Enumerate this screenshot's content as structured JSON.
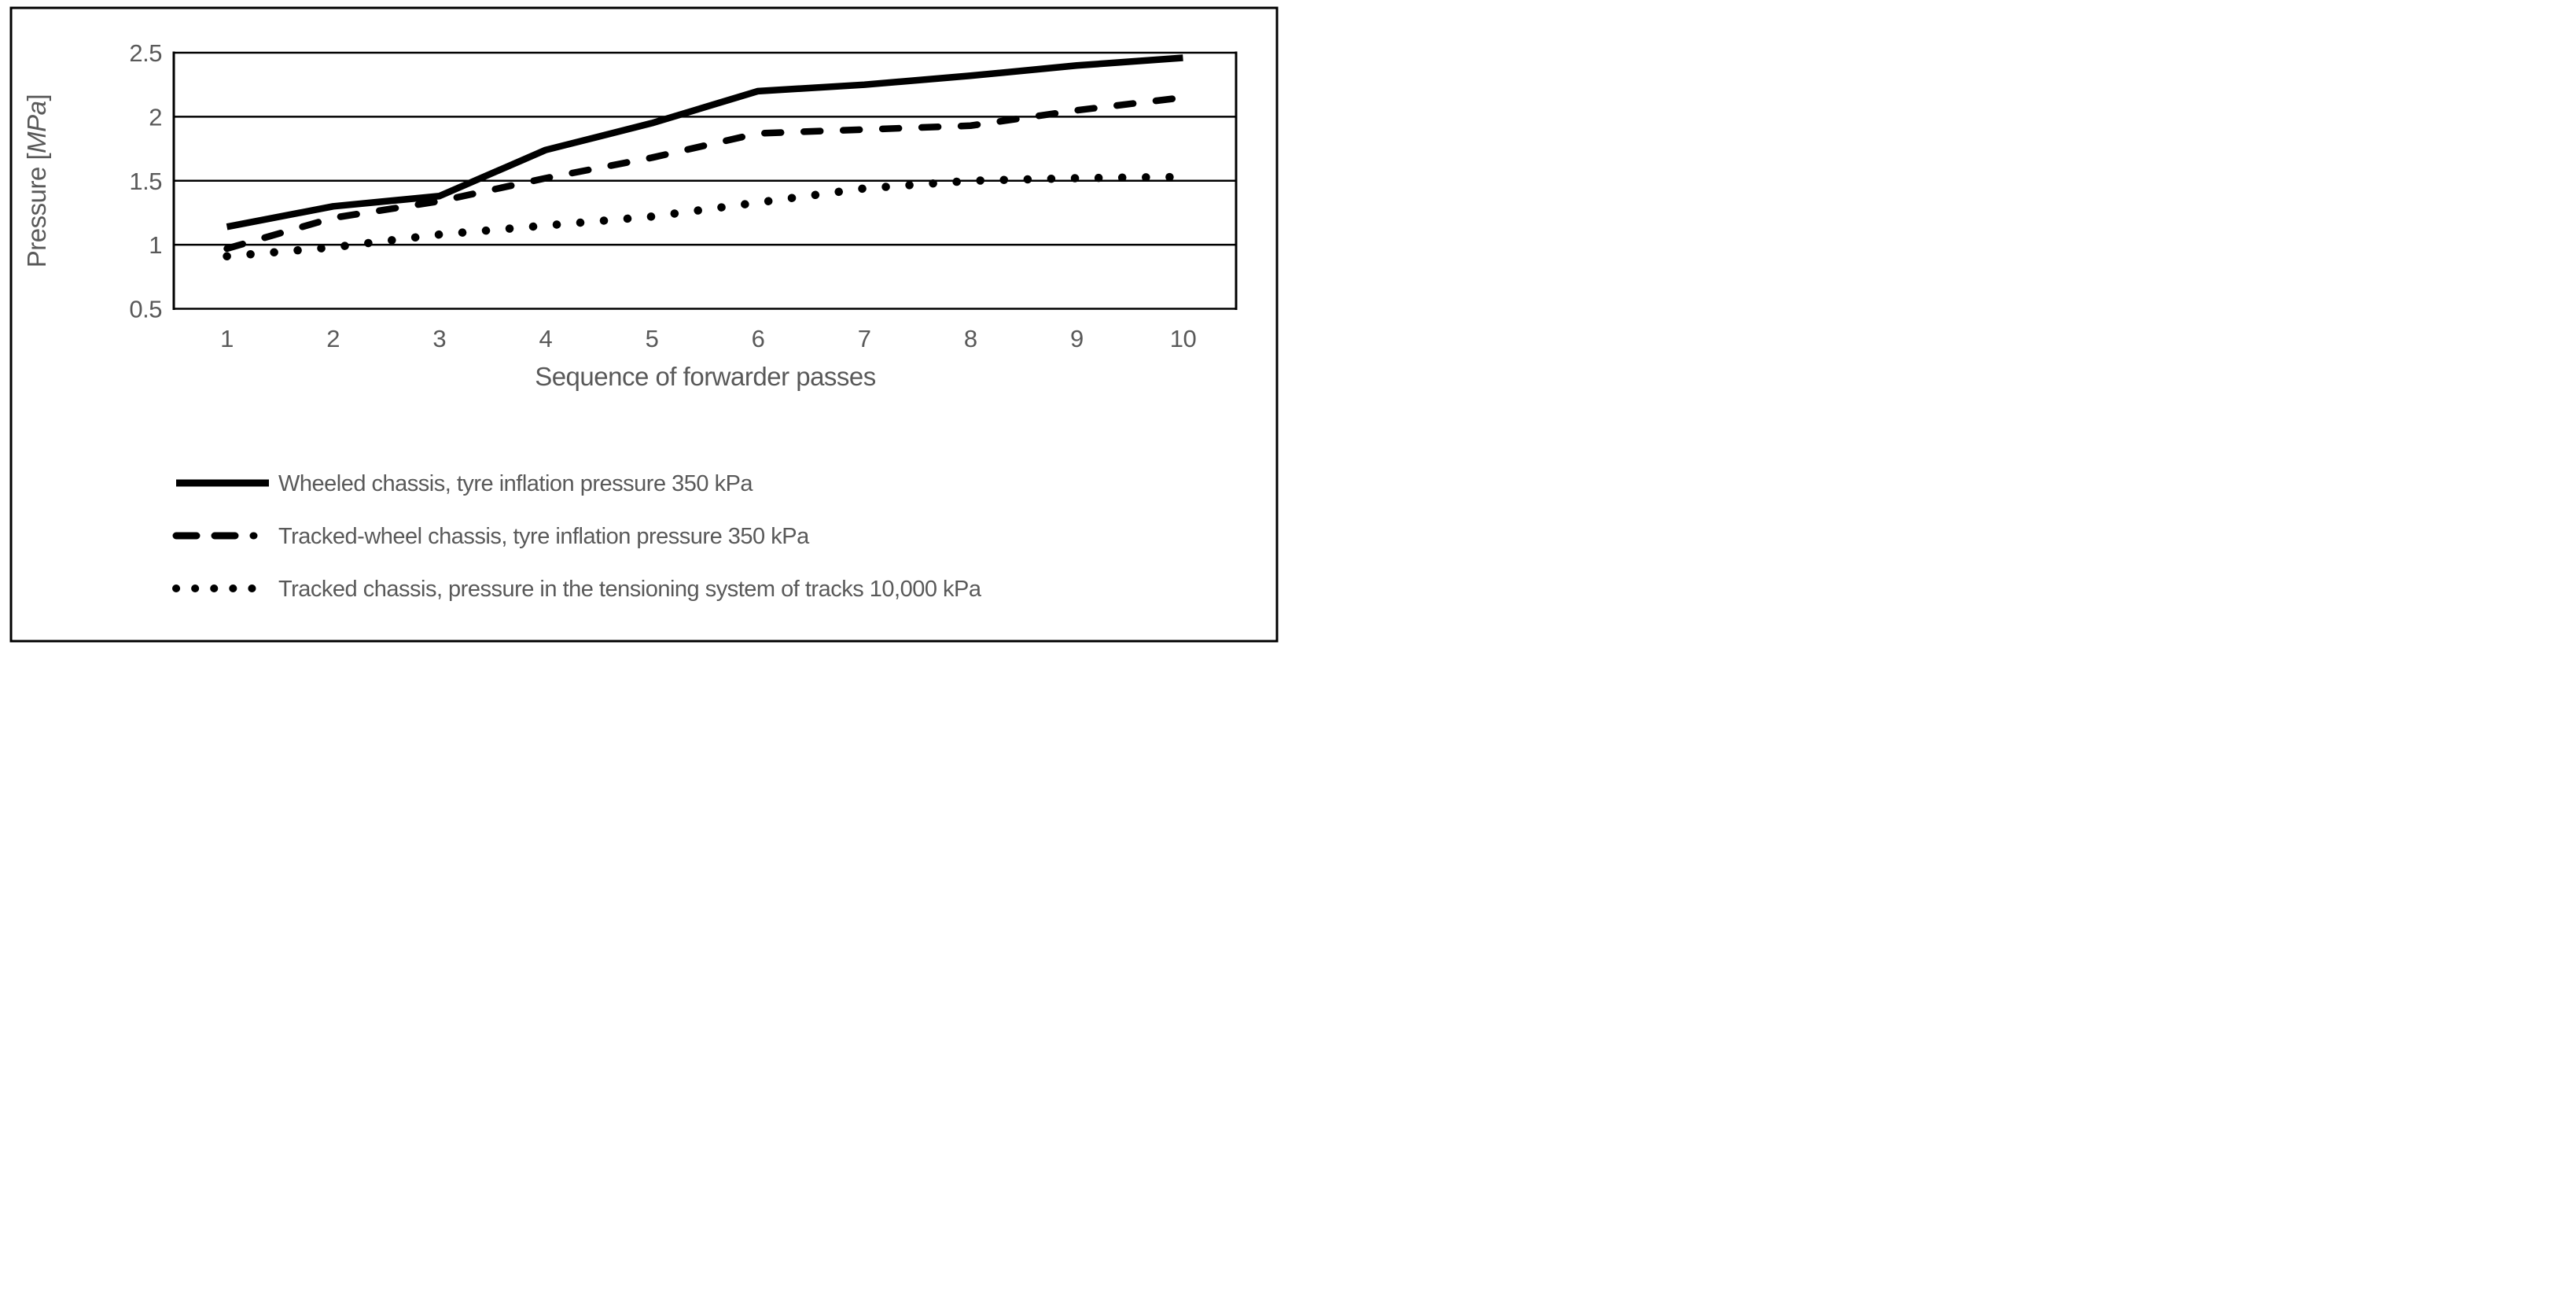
{
  "figure": {
    "background": "#ffffff",
    "line_color": "#000000",
    "text_color": "#595959",
    "ylabel_prefix": "Pressure [",
    "ylabel_unit": "MPa",
    "ylabel_suffix": "]"
  },
  "chart_data": {
    "type": "line",
    "title": "",
    "xlabel": "Sequence of forwarder passes",
    "ylabel": "Pressure [MPa]",
    "x": [
      1,
      2,
      3,
      4,
      5,
      6,
      7,
      8,
      9,
      10
    ],
    "xtick_labels": [
      "1",
      "2",
      "3",
      "4",
      "5",
      "6",
      "7",
      "8",
      "9",
      "10"
    ],
    "ylim": [
      0.5,
      2.5
    ],
    "yticks": [
      0.5,
      1,
      1.5,
      2,
      2.5
    ],
    "ytick_labels": [
      "0.5",
      "1",
      "1.5",
      "2",
      "2.5"
    ],
    "grid": "horizontal",
    "legend_position": "bottom-left",
    "series": [
      {
        "name": "Wheeled chassis, tyre inflation pressure 350 kPa",
        "style": "solid",
        "color": "#000000",
        "values": [
          1.14,
          1.3,
          1.38,
          1.74,
          1.95,
          2.2,
          2.25,
          2.32,
          2.4,
          2.46
        ]
      },
      {
        "name": "Tracked-wheel chassis, tyre inflation pressure 350 kPa",
        "style": "dashed",
        "color": "#000000",
        "values": [
          0.97,
          1.21,
          1.34,
          1.52,
          1.68,
          1.87,
          1.9,
          1.93,
          2.05,
          2.15
        ]
      },
      {
        "name": "Tracked chassis, pressure in the tensioning system of tracks 10,000 kPa",
        "style": "dotted",
        "color": "#000000",
        "values": [
          0.91,
          0.98,
          1.08,
          1.15,
          1.22,
          1.33,
          1.44,
          1.5,
          1.52,
          1.53
        ]
      }
    ]
  }
}
